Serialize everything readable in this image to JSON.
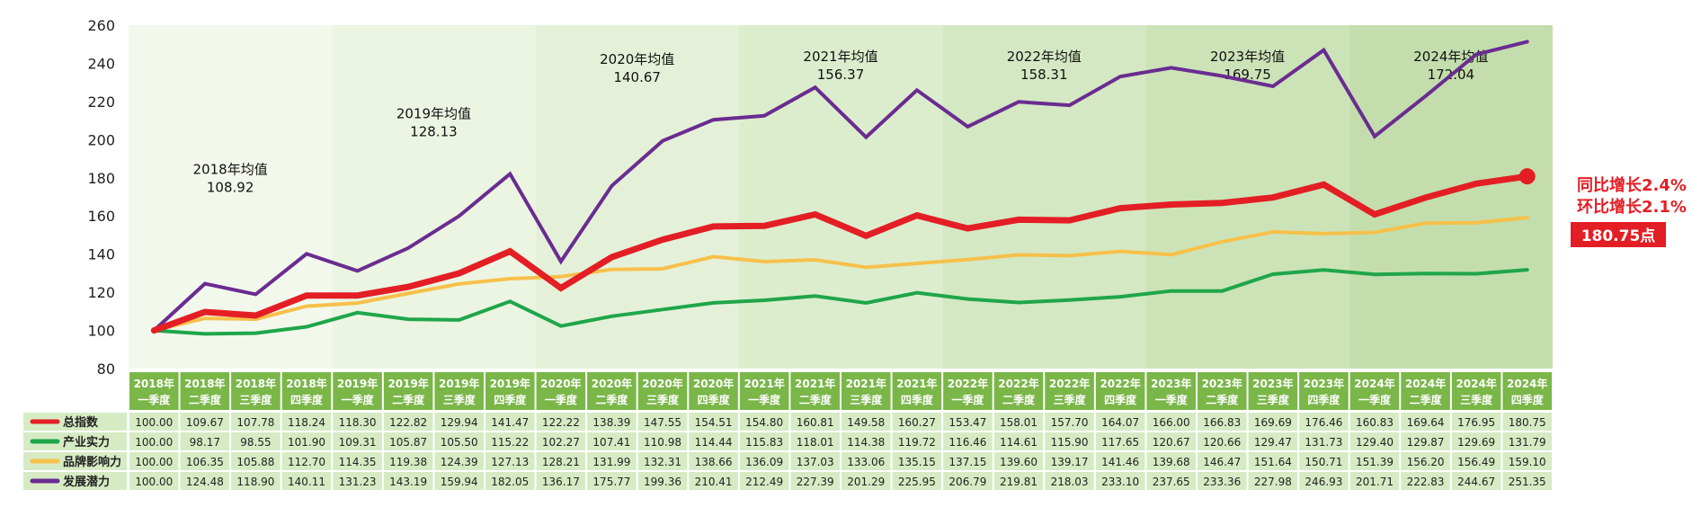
{
  "chart_data": {
    "type": "line",
    "title": "",
    "xlabel": "",
    "ylabel": "",
    "ylim": [
      80,
      260
    ],
    "yticks": [
      80,
      100,
      120,
      140,
      160,
      180,
      200,
      220,
      240,
      260
    ],
    "categories": [
      [
        "2018年",
        "一季度"
      ],
      [
        "2018年",
        "二季度"
      ],
      [
        "2018年",
        "三季度"
      ],
      [
        "2018年",
        "四季度"
      ],
      [
        "2019年",
        "一季度"
      ],
      [
        "2019年",
        "二季度"
      ],
      [
        "2019年",
        "三季度"
      ],
      [
        "2019年",
        "四季度"
      ],
      [
        "2020年",
        "一季度"
      ],
      [
        "2020年",
        "二季度"
      ],
      [
        "2020年",
        "三季度"
      ],
      [
        "2020年",
        "四季度"
      ],
      [
        "2021年",
        "一季度"
      ],
      [
        "2021年",
        "二季度"
      ],
      [
        "2021年",
        "三季度"
      ],
      [
        "2021年",
        "四季度"
      ],
      [
        "2022年",
        "一季度"
      ],
      [
        "2022年",
        "二季度"
      ],
      [
        "2022年",
        "三季度"
      ],
      [
        "2022年",
        "四季度"
      ],
      [
        "2023年",
        "一季度"
      ],
      [
        "2023年",
        "二季度"
      ],
      [
        "2023年",
        "三季度"
      ],
      [
        "2023年",
        "四季度"
      ],
      [
        "2024年",
        "一季度"
      ],
      [
        "2024年",
        "二季度"
      ],
      [
        "2024年",
        "三季度"
      ],
      [
        "2024年",
        "四季度"
      ]
    ],
    "series": [
      {
        "name": "总指数",
        "color": "#e31e24",
        "values": [
          100.0,
          109.67,
          107.78,
          118.24,
          118.3,
          122.82,
          129.94,
          141.47,
          122.22,
          138.39,
          147.55,
          154.51,
          154.8,
          160.81,
          149.58,
          160.27,
          153.47,
          158.01,
          157.7,
          164.07,
          166.0,
          166.83,
          169.69,
          176.46,
          160.83,
          169.64,
          176.95,
          180.75
        ]
      },
      {
        "name": "产业实力",
        "color": "#1fa64a",
        "values": [
          100.0,
          98.17,
          98.55,
          101.9,
          109.31,
          105.87,
          105.5,
          115.22,
          102.27,
          107.41,
          110.98,
          114.44,
          115.83,
          118.01,
          114.38,
          119.72,
          116.46,
          114.61,
          115.9,
          117.65,
          120.67,
          120.66,
          129.47,
          131.73,
          129.4,
          129.87,
          129.69,
          131.79
        ]
      },
      {
        "name": "品牌影响力",
        "color": "#f7c04a",
        "values": [
          100.0,
          106.35,
          105.88,
          112.7,
          114.35,
          119.38,
          124.39,
          127.13,
          128.21,
          131.99,
          132.31,
          138.66,
          136.09,
          137.03,
          133.06,
          135.15,
          137.15,
          139.6,
          139.17,
          141.46,
          139.68,
          146.47,
          151.64,
          150.71,
          151.39,
          156.2,
          156.49,
          159.1
        ]
      },
      {
        "name": "发展潜力",
        "color": "#6a2c91",
        "values": [
          100.0,
          124.48,
          118.9,
          140.11,
          131.23,
          143.19,
          159.94,
          182.05,
          136.17,
          175.77,
          199.36,
          210.41,
          212.49,
          227.39,
          201.29,
          225.95,
          206.79,
          219.81,
          218.03,
          233.1,
          237.65,
          233.36,
          227.98,
          246.93,
          201.71,
          222.83,
          244.67,
          251.35
        ]
      }
    ],
    "table_values": [
      [
        "100.00",
        "109.67",
        "107.78",
        "118.24",
        "118.30",
        "122.82",
        "129.94",
        "141.47",
        "122.22",
        "138.39",
        "147.55",
        "154.51",
        "154.80",
        "160.81",
        "149.58",
        "160.27",
        "153.47",
        "158.01",
        "157.70",
        "164.07",
        "166.00",
        "166.83",
        "169.69",
        "176.46",
        "160.83",
        "169.64",
        "176.95",
        "180.75"
      ],
      [
        "100.00",
        "98.17",
        "98.55",
        "101.90",
        "109.31",
        "105.87",
        "105.50",
        "115.22",
        "102.27",
        "107.41",
        "110.98",
        "114.44",
        "115.83",
        "118.01",
        "114.38",
        "119.72",
        "116.46",
        "114.61",
        "115.90",
        "117.65",
        "120.67",
        "120.66",
        "129.47",
        "131.73",
        "129.40",
        "129.87",
        "129.69",
        "131.79"
      ],
      [
        "100.00",
        "106.35",
        "105.88",
        "112.70",
        "114.35",
        "119.38",
        "124.39",
        "127.13",
        "128.21",
        "131.99",
        "132.31",
        "138.66",
        "136.09",
        "137.03",
        "133.06",
        "135.15",
        "137.15",
        "139.60",
        "139.17",
        "141.46",
        "139.68",
        "146.47",
        "151.64",
        "150.71",
        "151.39",
        "156.20",
        "156.49",
        "159.10"
      ],
      [
        "100.00",
        "124.48",
        "118.90",
        "140.11",
        "131.23",
        "143.19",
        "159.94",
        "182.05",
        "136.17",
        "175.77",
        "199.36",
        "210.41",
        "212.49",
        "227.39",
        "201.29",
        "225.95",
        "206.79",
        "219.81",
        "218.03",
        "233.10",
        "237.65",
        "233.36",
        "227.98",
        "246.93",
        "201.71",
        "222.83",
        "244.67",
        "251.35"
      ]
    ],
    "annual_averages": [
      {
        "label": "2018年均值",
        "value": "108.92"
      },
      {
        "label": "2019年均值",
        "value": "128.13"
      },
      {
        "label": "2020年均值",
        "value": "140.67"
      },
      {
        "label": "2021年均值",
        "value": "156.37"
      },
      {
        "label": "2022年均值",
        "value": "158.31"
      },
      {
        "label": "2023年均值",
        "value": "169.75"
      },
      {
        "label": "2024年均值",
        "value": "172.04"
      }
    ],
    "callout": {
      "yoy": "同比增长2.4%",
      "qoq": "环比增长2.1%",
      "value": "180.75点"
    },
    "grid": false,
    "legend": "table-left",
    "colors": {
      "header_bg": "#7ab648",
      "row_bg": "#d6ebc4",
      "band_base": "#eef6e6",
      "callout_red": "#e31e24"
    }
  }
}
